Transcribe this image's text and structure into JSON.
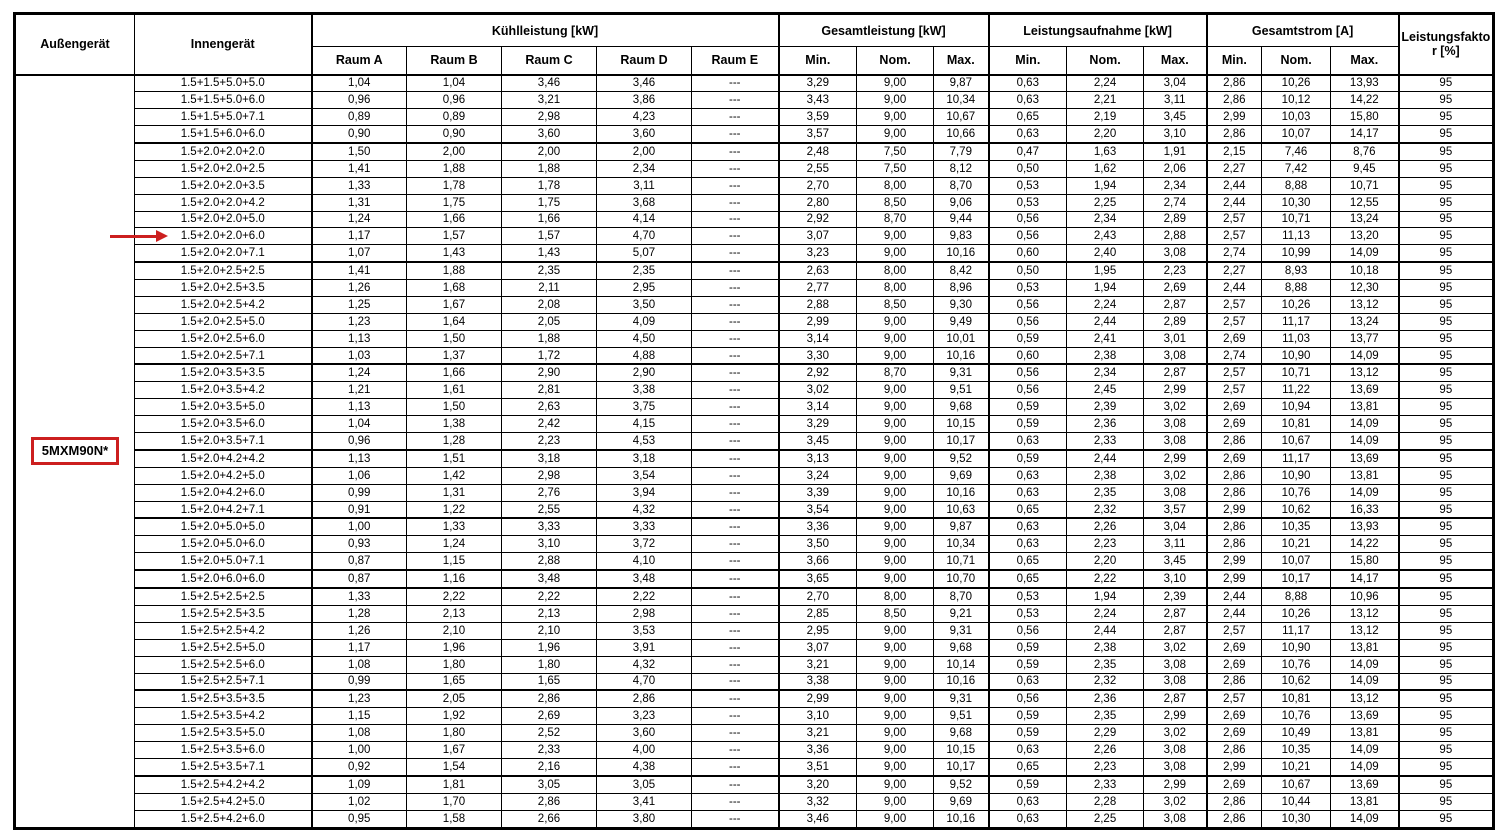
{
  "table": {
    "outdoor_unit_label": "5MXM90N*",
    "header": {
      "col_aussengeraet": "Außengerät",
      "col_innengeraet": "Innengerät",
      "groups": [
        {
          "label": "Kühlleistung [kW]",
          "cols": [
            "Raum A",
            "Raum B",
            "Raum C",
            "Raum D",
            "Raum E"
          ]
        },
        {
          "label": "Gesamtleistung [kW]",
          "cols": [
            "Min.",
            "Nom.",
            "Max."
          ]
        },
        {
          "label": "Leistungsaufnahme [kW]",
          "cols": [
            "Min.",
            "Nom.",
            "Max."
          ]
        },
        {
          "label": "Gesamtstrom [A]",
          "cols": [
            "Min.",
            "Nom.",
            "Max."
          ]
        }
      ],
      "col_leistungsfaktor_line1": "Leistungsfakto",
      "col_leistungsfaktor_line2": "r [%]"
    },
    "group_separator_rows": [
      4,
      11,
      17,
      22,
      26,
      29,
      30,
      36,
      41
    ],
    "rows": [
      {
        "innengeraet": "1.5+1.5+5.0+5.0",
        "values": [
          "1,04",
          "1,04",
          "3,46",
          "3,46",
          "---",
          "3,29",
          "9,00",
          "9,87",
          "0,63",
          "2,24",
          "3,04",
          "2,86",
          "10,26",
          "13,93",
          "95"
        ]
      },
      {
        "innengeraet": "1.5+1.5+5.0+6.0",
        "values": [
          "0,96",
          "0,96",
          "3,21",
          "3,86",
          "---",
          "3,43",
          "9,00",
          "10,34",
          "0,63",
          "2,21",
          "3,11",
          "2,86",
          "10,12",
          "14,22",
          "95"
        ]
      },
      {
        "innengeraet": "1.5+1.5+5.0+7.1",
        "values": [
          "0,89",
          "0,89",
          "2,98",
          "4,23",
          "---",
          "3,59",
          "9,00",
          "10,67",
          "0,65",
          "2,19",
          "3,45",
          "2,99",
          "10,03",
          "15,80",
          "95"
        ]
      },
      {
        "innengeraet": "1.5+1.5+6.0+6.0",
        "values": [
          "0,90",
          "0,90",
          "3,60",
          "3,60",
          "---",
          "3,57",
          "9,00",
          "10,66",
          "0,63",
          "2,20",
          "3,10",
          "2,86",
          "10,07",
          "14,17",
          "95"
        ]
      },
      {
        "innengeraet": "1.5+2.0+2.0+2.0",
        "values": [
          "1,50",
          "2,00",
          "2,00",
          "2,00",
          "---",
          "2,48",
          "7,50",
          "7,79",
          "0,47",
          "1,63",
          "1,91",
          "2,15",
          "7,46",
          "8,76",
          "95"
        ]
      },
      {
        "innengeraet": "1.5+2.0+2.0+2.5",
        "values": [
          "1,41",
          "1,88",
          "1,88",
          "2,34",
          "---",
          "2,55",
          "7,50",
          "8,12",
          "0,50",
          "1,62",
          "2,06",
          "2,27",
          "7,42",
          "9,45",
          "95"
        ]
      },
      {
        "innengeraet": "1.5+2.0+2.0+3.5",
        "values": [
          "1,33",
          "1,78",
          "1,78",
          "3,11",
          "---",
          "2,70",
          "8,00",
          "8,70",
          "0,53",
          "1,94",
          "2,34",
          "2,44",
          "8,88",
          "10,71",
          "95"
        ]
      },
      {
        "innengeraet": "1.5+2.0+2.0+4.2",
        "values": [
          "1,31",
          "1,75",
          "1,75",
          "3,68",
          "---",
          "2,80",
          "8,50",
          "9,06",
          "0,53",
          "2,25",
          "2,74",
          "2,44",
          "10,30",
          "12,55",
          "95"
        ]
      },
      {
        "innengeraet": "1.5+2.0+2.0+5.0",
        "values": [
          "1,24",
          "1,66",
          "1,66",
          "4,14",
          "---",
          "2,92",
          "8,70",
          "9,44",
          "0,56",
          "2,34",
          "2,89",
          "2,57",
          "10,71",
          "13,24",
          "95"
        ]
      },
      {
        "innengeraet": "1.5+2.0+2.0+6.0",
        "arrow": true,
        "values": [
          "1,17",
          "1,57",
          "1,57",
          "4,70",
          "---",
          "3,07",
          "9,00",
          "9,83",
          "0,56",
          "2,43",
          "2,88",
          "2,57",
          "11,13",
          "13,20",
          "95"
        ]
      },
      {
        "innengeraet": "1.5+2.0+2.0+7.1",
        "values": [
          "1,07",
          "1,43",
          "1,43",
          "5,07",
          "---",
          "3,23",
          "9,00",
          "10,16",
          "0,60",
          "2,40",
          "3,08",
          "2,74",
          "10,99",
          "14,09",
          "95"
        ]
      },
      {
        "innengeraet": "1.5+2.0+2.5+2.5",
        "values": [
          "1,41",
          "1,88",
          "2,35",
          "2,35",
          "---",
          "2,63",
          "8,00",
          "8,42",
          "0,50",
          "1,95",
          "2,23",
          "2,27",
          "8,93",
          "10,18",
          "95"
        ]
      },
      {
        "innengeraet": "1.5+2.0+2.5+3.5",
        "values": [
          "1,26",
          "1,68",
          "2,11",
          "2,95",
          "---",
          "2,77",
          "8,00",
          "8,96",
          "0,53",
          "1,94",
          "2,69",
          "2,44",
          "8,88",
          "12,30",
          "95"
        ]
      },
      {
        "innengeraet": "1.5+2.0+2.5+4.2",
        "values": [
          "1,25",
          "1,67",
          "2,08",
          "3,50",
          "---",
          "2,88",
          "8,50",
          "9,30",
          "0,56",
          "2,24",
          "2,87",
          "2,57",
          "10,26",
          "13,12",
          "95"
        ]
      },
      {
        "innengeraet": "1.5+2.0+2.5+5.0",
        "values": [
          "1,23",
          "1,64",
          "2,05",
          "4,09",
          "---",
          "2,99",
          "9,00",
          "9,49",
          "0,56",
          "2,44",
          "2,89",
          "2,57",
          "11,17",
          "13,24",
          "95"
        ]
      },
      {
        "innengeraet": "1.5+2.0+2.5+6.0",
        "values": [
          "1,13",
          "1,50",
          "1,88",
          "4,50",
          "---",
          "3,14",
          "9,00",
          "10,01",
          "0,59",
          "2,41",
          "3,01",
          "2,69",
          "11,03",
          "13,77",
          "95"
        ]
      },
      {
        "innengeraet": "1.5+2.0+2.5+7.1",
        "values": [
          "1,03",
          "1,37",
          "1,72",
          "4,88",
          "---",
          "3,30",
          "9,00",
          "10,16",
          "0,60",
          "2,38",
          "3,08",
          "2,74",
          "10,90",
          "14,09",
          "95"
        ]
      },
      {
        "innengeraet": "1.5+2.0+3.5+3.5",
        "values": [
          "1,24",
          "1,66",
          "2,90",
          "2,90",
          "---",
          "2,92",
          "8,70",
          "9,31",
          "0,56",
          "2,34",
          "2,87",
          "2,57",
          "10,71",
          "13,12",
          "95"
        ]
      },
      {
        "innengeraet": "1.5+2.0+3.5+4.2",
        "values": [
          "1,21",
          "1,61",
          "2,81",
          "3,38",
          "---",
          "3,02",
          "9,00",
          "9,51",
          "0,56",
          "2,45",
          "2,99",
          "2,57",
          "11,22",
          "13,69",
          "95"
        ]
      },
      {
        "innengeraet": "1.5+2.0+3.5+5.0",
        "values": [
          "1,13",
          "1,50",
          "2,63",
          "3,75",
          "---",
          "3,14",
          "9,00",
          "9,68",
          "0,59",
          "2,39",
          "3,02",
          "2,69",
          "10,94",
          "13,81",
          "95"
        ]
      },
      {
        "innengeraet": "1.5+2.0+3.5+6.0",
        "values": [
          "1,04",
          "1,38",
          "2,42",
          "4,15",
          "---",
          "3,29",
          "9,00",
          "10,15",
          "0,59",
          "2,36",
          "3,08",
          "2,69",
          "10,81",
          "14,09",
          "95"
        ]
      },
      {
        "innengeraet": "1.5+2.0+3.5+7.1",
        "values": [
          "0,96",
          "1,28",
          "2,23",
          "4,53",
          "---",
          "3,45",
          "9,00",
          "10,17",
          "0,63",
          "2,33",
          "3,08",
          "2,86",
          "10,67",
          "14,09",
          "95"
        ]
      },
      {
        "innengeraet": "1.5+2.0+4.2+4.2",
        "values": [
          "1,13",
          "1,51",
          "3,18",
          "3,18",
          "---",
          "3,13",
          "9,00",
          "9,52",
          "0,59",
          "2,44",
          "2,99",
          "2,69",
          "11,17",
          "13,69",
          "95"
        ]
      },
      {
        "innengeraet": "1.5+2.0+4.2+5.0",
        "values": [
          "1,06",
          "1,42",
          "2,98",
          "3,54",
          "---",
          "3,24",
          "9,00",
          "9,69",
          "0,63",
          "2,38",
          "3,02",
          "2,86",
          "10,90",
          "13,81",
          "95"
        ]
      },
      {
        "innengeraet": "1.5+2.0+4.2+6.0",
        "values": [
          "0,99",
          "1,31",
          "2,76",
          "3,94",
          "---",
          "3,39",
          "9,00",
          "10,16",
          "0,63",
          "2,35",
          "3,08",
          "2,86",
          "10,76",
          "14,09",
          "95"
        ]
      },
      {
        "innengeraet": "1.5+2.0+4.2+7.1",
        "values": [
          "0,91",
          "1,22",
          "2,55",
          "4,32",
          "---",
          "3,54",
          "9,00",
          "10,63",
          "0,65",
          "2,32",
          "3,57",
          "2,99",
          "10,62",
          "16,33",
          "95"
        ]
      },
      {
        "innengeraet": "1.5+2.0+5.0+5.0",
        "values": [
          "1,00",
          "1,33",
          "3,33",
          "3,33",
          "---",
          "3,36",
          "9,00",
          "9,87",
          "0,63",
          "2,26",
          "3,04",
          "2,86",
          "10,35",
          "13,93",
          "95"
        ]
      },
      {
        "innengeraet": "1.5+2.0+5.0+6.0",
        "values": [
          "0,93",
          "1,24",
          "3,10",
          "3,72",
          "---",
          "3,50",
          "9,00",
          "10,34",
          "0,63",
          "2,23",
          "3,11",
          "2,86",
          "10,21",
          "14,22",
          "95"
        ]
      },
      {
        "innengeraet": "1.5+2.0+5.0+7.1",
        "values": [
          "0,87",
          "1,15",
          "2,88",
          "4,10",
          "---",
          "3,66",
          "9,00",
          "10,71",
          "0,65",
          "2,20",
          "3,45",
          "2,99",
          "10,07",
          "15,80",
          "95"
        ]
      },
      {
        "innengeraet": "1.5+2.0+6.0+6.0",
        "values": [
          "0,87",
          "1,16",
          "3,48",
          "3,48",
          "---",
          "3,65",
          "9,00",
          "10,70",
          "0,65",
          "2,22",
          "3,10",
          "2,99",
          "10,17",
          "14,17",
          "95"
        ]
      },
      {
        "innengeraet": "1.5+2.5+2.5+2.5",
        "values": [
          "1,33",
          "2,22",
          "2,22",
          "2,22",
          "---",
          "2,70",
          "8,00",
          "8,70",
          "0,53",
          "1,94",
          "2,39",
          "2,44",
          "8,88",
          "10,96",
          "95"
        ]
      },
      {
        "innengeraet": "1.5+2.5+2.5+3.5",
        "values": [
          "1,28",
          "2,13",
          "2,13",
          "2,98",
          "---",
          "2,85",
          "8,50",
          "9,21",
          "0,53",
          "2,24",
          "2,87",
          "2,44",
          "10,26",
          "13,12",
          "95"
        ]
      },
      {
        "innengeraet": "1.5+2.5+2.5+4.2",
        "values": [
          "1,26",
          "2,10",
          "2,10",
          "3,53",
          "---",
          "2,95",
          "9,00",
          "9,31",
          "0,56",
          "2,44",
          "2,87",
          "2,57",
          "11,17",
          "13,12",
          "95"
        ]
      },
      {
        "innengeraet": "1.5+2.5+2.5+5.0",
        "values": [
          "1,17",
          "1,96",
          "1,96",
          "3,91",
          "---",
          "3,07",
          "9,00",
          "9,68",
          "0,59",
          "2,38",
          "3,02",
          "2,69",
          "10,90",
          "13,81",
          "95"
        ]
      },
      {
        "innengeraet": "1.5+2.5+2.5+6.0",
        "values": [
          "1,08",
          "1,80",
          "1,80",
          "4,32",
          "---",
          "3,21",
          "9,00",
          "10,14",
          "0,59",
          "2,35",
          "3,08",
          "2,69",
          "10,76",
          "14,09",
          "95"
        ]
      },
      {
        "innengeraet": "1.5+2.5+2.5+7.1",
        "values": [
          "0,99",
          "1,65",
          "1,65",
          "4,70",
          "---",
          "3,38",
          "9,00",
          "10,16",
          "0,63",
          "2,32",
          "3,08",
          "2,86",
          "10,62",
          "14,09",
          "95"
        ]
      },
      {
        "innengeraet": "1.5+2.5+3.5+3.5",
        "values": [
          "1,23",
          "2,05",
          "2,86",
          "2,86",
          "---",
          "2,99",
          "9,00",
          "9,31",
          "0,56",
          "2,36",
          "2,87",
          "2,57",
          "10,81",
          "13,12",
          "95"
        ]
      },
      {
        "innengeraet": "1.5+2.5+3.5+4.2",
        "values": [
          "1,15",
          "1,92",
          "2,69",
          "3,23",
          "---",
          "3,10",
          "9,00",
          "9,51",
          "0,59",
          "2,35",
          "2,99",
          "2,69",
          "10,76",
          "13,69",
          "95"
        ]
      },
      {
        "innengeraet": "1.5+2.5+3.5+5.0",
        "values": [
          "1,08",
          "1,80",
          "2,52",
          "3,60",
          "---",
          "3,21",
          "9,00",
          "9,68",
          "0,59",
          "2,29",
          "3,02",
          "2,69",
          "10,49",
          "13,81",
          "95"
        ]
      },
      {
        "innengeraet": "1.5+2.5+3.5+6.0",
        "values": [
          "1,00",
          "1,67",
          "2,33",
          "4,00",
          "---",
          "3,36",
          "9,00",
          "10,15",
          "0,63",
          "2,26",
          "3,08",
          "2,86",
          "10,35",
          "14,09",
          "95"
        ]
      },
      {
        "innengeraet": "1.5+2.5+3.5+7.1",
        "values": [
          "0,92",
          "1,54",
          "2,16",
          "4,38",
          "---",
          "3,51",
          "9,00",
          "10,17",
          "0,65",
          "2,23",
          "3,08",
          "2,99",
          "10,21",
          "14,09",
          "95"
        ]
      },
      {
        "innengeraet": "1.5+2.5+4.2+4.2",
        "values": [
          "1,09",
          "1,81",
          "3,05",
          "3,05",
          "---",
          "3,20",
          "9,00",
          "9,52",
          "0,59",
          "2,33",
          "2,99",
          "2,69",
          "10,67",
          "13,69",
          "95"
        ]
      },
      {
        "innengeraet": "1.5+2.5+4.2+5.0",
        "values": [
          "1,02",
          "1,70",
          "2,86",
          "3,41",
          "---",
          "3,32",
          "9,00",
          "9,69",
          "0,63",
          "2,28",
          "3,02",
          "2,86",
          "10,44",
          "13,81",
          "95"
        ]
      },
      {
        "innengeraet": "1.5+2.5+4.2+6.0",
        "values": [
          "0,95",
          "1,58",
          "2,66",
          "3,80",
          "---",
          "3,46",
          "9,00",
          "10,16",
          "0,63",
          "2,25",
          "3,08",
          "2,86",
          "10,30",
          "14,09",
          "95"
        ]
      }
    ]
  },
  "annotations": {
    "arrow_points_to_row": "1.5+2.0+2.0+6.0",
    "accent_color": "#cc1f1f"
  }
}
